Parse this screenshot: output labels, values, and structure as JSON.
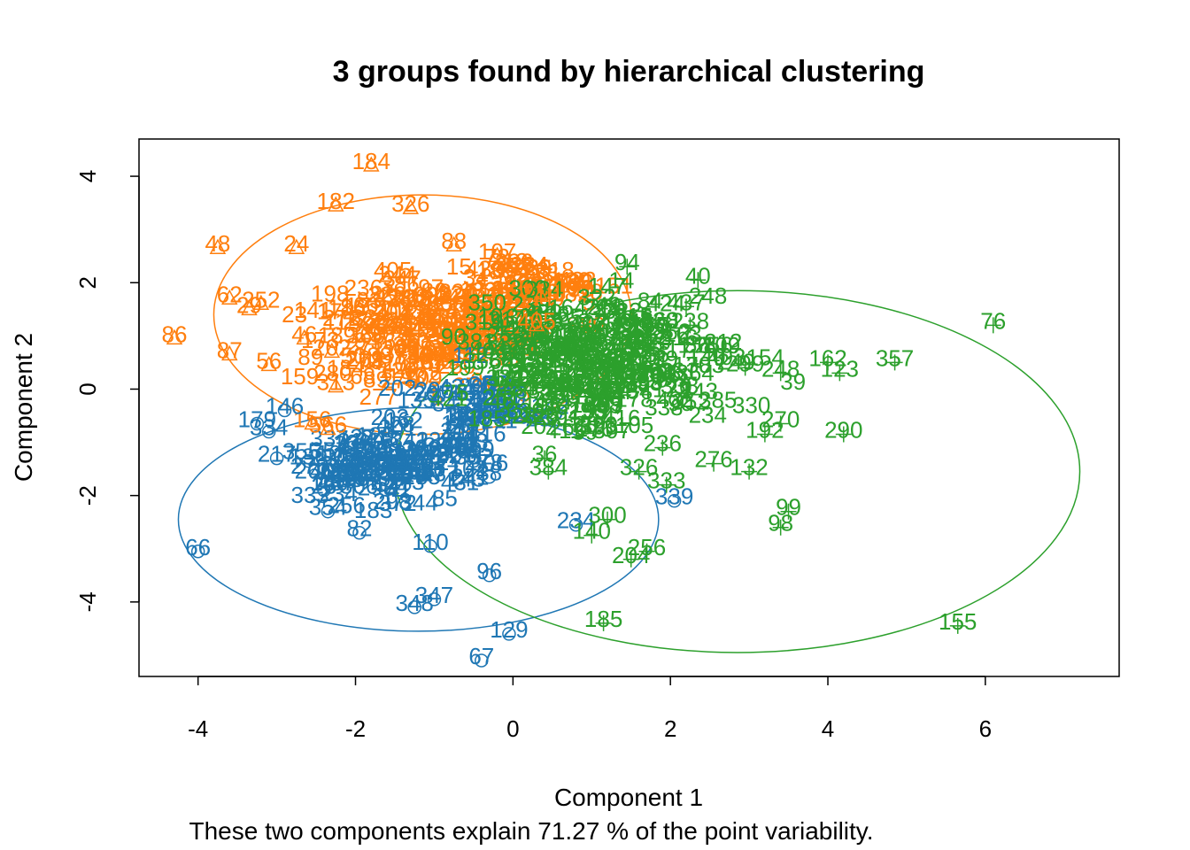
{
  "chart_data": {
    "type": "scatter",
    "title": "3 groups found by hierarchical clustering",
    "xlabel": "Component 1",
    "ylabel": "Component 2",
    "subtitle": "These two components explain 71.27 % of the point variability.",
    "xlim": [
      -4.75,
      7.7
    ],
    "ylim": [
      -5.4,
      4.7
    ],
    "xticks": [
      -4,
      -2,
      0,
      2,
      4,
      6
    ],
    "yticks": [
      -4,
      -2,
      0,
      2,
      4
    ],
    "grid": false,
    "legend": "none",
    "series": [
      {
        "name": "",
        "color": "#ff7f0e",
        "marker": "triangle",
        "ellipse": {
          "cx": -1.15,
          "cy": 1.4,
          "rx": 2.65,
          "ry": 2.25
        },
        "points": [
          {
            "label": "184",
            "x": -1.8,
            "y": 4.2
          },
          {
            "label": "182",
            "x": -2.25,
            "y": 3.45
          },
          {
            "label": "326",
            "x": -1.3,
            "y": 3.4
          },
          {
            "label": "48",
            "x": -3.75,
            "y": 2.65
          },
          {
            "label": "24",
            "x": -2.75,
            "y": 2.65
          },
          {
            "label": "88",
            "x": -0.75,
            "y": 2.7
          },
          {
            "label": "62",
            "x": -3.6,
            "y": 1.7
          },
          {
            "label": "252",
            "x": -3.2,
            "y": 1.6
          },
          {
            "label": "29",
            "x": -3.35,
            "y": 1.5
          },
          {
            "label": "86",
            "x": -4.3,
            "y": 0.95
          },
          {
            "label": "87",
            "x": -3.6,
            "y": 0.65
          },
          {
            "label": "46",
            "x": -2.65,
            "y": 0.95
          },
          {
            "label": "166",
            "x": -1.95,
            "y": 1.5
          },
          {
            "label": "226",
            "x": -1.6,
            "y": 1.7
          },
          {
            "label": "107",
            "x": -0.2,
            "y": 2.5
          },
          {
            "label": "229",
            "x": 0.25,
            "y": 2.2
          },
          {
            "label": "56",
            "x": -3.1,
            "y": 0.45
          },
          {
            "label": "202",
            "x": -2.3,
            "y": 0.7
          },
          {
            "label": "313",
            "x": -2.25,
            "y": 0.05
          },
          {
            "label": "156",
            "x": -2.55,
            "y": -0.65
          },
          {
            "label": "566",
            "x": -2.35,
            "y": -0.75
          },
          {
            "label": "405",
            "x": 0.3,
            "y": 1.2
          },
          {
            "label": "210",
            "x": 0.35,
            "y": 1.75
          }
        ]
      },
      {
        "name": "",
        "color": "#1f77b4",
        "marker": "circle",
        "ellipse": {
          "cx": -1.2,
          "cy": -2.45,
          "rx": 3.05,
          "ry": 2.1
        },
        "points": [
          {
            "label": "146",
            "x": -2.9,
            "y": -0.4
          },
          {
            "label": "179",
            "x": -3.25,
            "y": -0.65
          },
          {
            "label": "334",
            "x": -3.1,
            "y": -0.8
          },
          {
            "label": "217",
            "x": -3.0,
            "y": -1.3
          },
          {
            "label": "130",
            "x": -2.6,
            "y": -1.35
          },
          {
            "label": "290",
            "x": -1.0,
            "y": -0.1
          },
          {
            "label": "129",
            "x": -1.75,
            "y": -0.95
          },
          {
            "label": "26",
            "x": -2.4,
            "y": -1.9
          },
          {
            "label": "354",
            "x": -2.35,
            "y": -2.3
          },
          {
            "label": "82",
            "x": -1.95,
            "y": -2.7
          },
          {
            "label": "66",
            "x": -4.0,
            "y": -3.05
          },
          {
            "label": "110",
            "x": -1.05,
            "y": -2.95
          },
          {
            "label": "96",
            "x": -0.3,
            "y": -3.5
          },
          {
            "label": "347",
            "x": -1.0,
            "y": -3.95
          },
          {
            "label": "348",
            "x": -1.25,
            "y": -4.1
          },
          {
            "label": "129",
            "x": -0.05,
            "y": -4.6
          },
          {
            "label": "67",
            "x": -0.4,
            "y": -5.1
          },
          {
            "label": "352",
            "x": -0.5,
            "y": -1.35
          },
          {
            "label": "38",
            "x": -0.3,
            "y": -1.65
          },
          {
            "label": "339",
            "x": 2.05,
            "y": -2.1
          },
          {
            "label": "234",
            "x": 0.8,
            "y": -2.55
          }
        ]
      },
      {
        "name": "",
        "color": "#2ca02c",
        "marker": "plus",
        "ellipse": {
          "cx": 2.85,
          "cy": -1.55,
          "rx": 4.35,
          "ry": 3.4
        },
        "points": [
          {
            "label": "94",
            "x": 1.45,
            "y": 2.3
          },
          {
            "label": "40",
            "x": 2.35,
            "y": 2.05
          },
          {
            "label": "437",
            "x": 2.2,
            "y": 1.55
          },
          {
            "label": "238",
            "x": 2.25,
            "y": 1.2
          },
          {
            "label": "256",
            "x": 2.55,
            "y": 0.75
          },
          {
            "label": "76",
            "x": 6.1,
            "y": 1.2
          },
          {
            "label": "162",
            "x": 4.0,
            "y": 0.5
          },
          {
            "label": "357",
            "x": 4.85,
            "y": 0.5
          },
          {
            "label": "123",
            "x": 4.15,
            "y": 0.3
          },
          {
            "label": "248",
            "x": 3.4,
            "y": 0.3
          },
          {
            "label": "299",
            "x": 2.95,
            "y": 0.4
          },
          {
            "label": "270",
            "x": 3.4,
            "y": -0.65
          },
          {
            "label": "192",
            "x": 3.2,
            "y": -0.85
          },
          {
            "label": "290",
            "x": 4.2,
            "y": -0.85
          },
          {
            "label": "276",
            "x": 2.55,
            "y": -1.4
          },
          {
            "label": "132",
            "x": 3.0,
            "y": -1.55
          },
          {
            "label": "236",
            "x": 1.9,
            "y": -1.1
          },
          {
            "label": "326",
            "x": 1.6,
            "y": -1.55
          },
          {
            "label": "333",
            "x": 1.95,
            "y": -1.8
          },
          {
            "label": "99",
            "x": 3.5,
            "y": -2.3
          },
          {
            "label": "98",
            "x": 3.4,
            "y": -2.6
          },
          {
            "label": "300",
            "x": 1.2,
            "y": -2.45
          },
          {
            "label": "256",
            "x": 1.7,
            "y": -3.05
          },
          {
            "label": "204",
            "x": 1.5,
            "y": -3.2
          },
          {
            "label": "185",
            "x": 1.15,
            "y": -4.4
          },
          {
            "label": "155",
            "x": 5.65,
            "y": -4.45
          },
          {
            "label": "384",
            "x": 0.45,
            "y": -1.55
          },
          {
            "label": "36",
            "x": 0.4,
            "y": -1.3
          },
          {
            "label": "140",
            "x": 1.0,
            "y": -2.75
          }
        ]
      }
    ]
  }
}
